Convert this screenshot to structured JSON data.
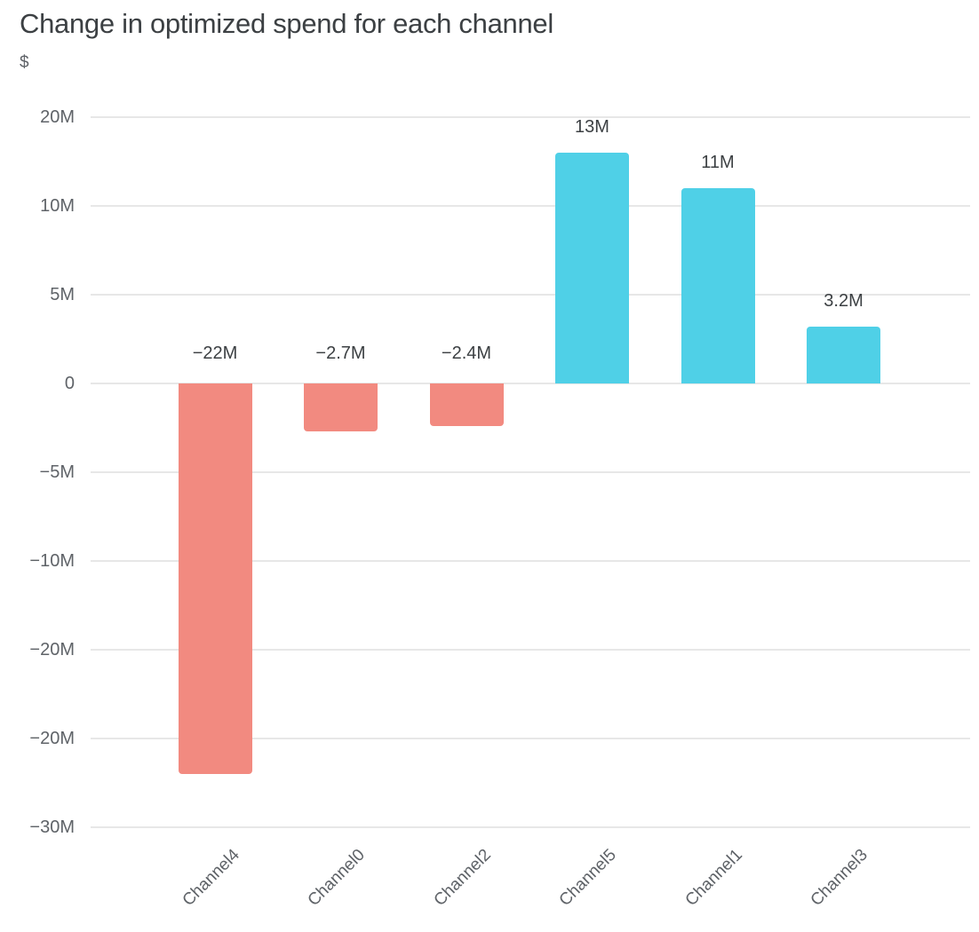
{
  "title": "Change in optimized spend for each channel",
  "y_axis_unit": "$",
  "colors": {
    "positive_bar": "#4FD0E7",
    "negative_bar": "#F28A80",
    "gridline": "#E7E7E7",
    "title_text": "#3C4043",
    "axis_text": "#5F6368",
    "value_label_text": "#3C4043"
  },
  "chart_data": {
    "type": "bar",
    "title": "Change in optimized spend for each channel",
    "xlabel": "",
    "ylabel": "$",
    "categories": [
      "Channel4",
      "Channel0",
      "Channel2",
      "Channel5",
      "Channel1",
      "Channel3"
    ],
    "values": [
      -22,
      -2.7,
      -2.4,
      13,
      11,
      3.2
    ],
    "value_unit": "M$",
    "bar_labels": [
      "−22M",
      "−2.7M",
      "−2.4M",
      "13M",
      "11M",
      "3.2M"
    ],
    "y_tick_labels": [
      "20M",
      "10M",
      "5M",
      "0",
      "−5M",
      "−10M",
      "−20M",
      "−20M",
      "−30M"
    ],
    "y_tick_values_m": [
      15,
      10,
      5,
      0,
      -5,
      -10,
      -15,
      -20,
      -25
    ],
    "ylim": [
      -32,
      16
    ],
    "grid": true,
    "legend": false,
    "negative_color": "#F28A80",
    "positive_color": "#4FD0E7"
  }
}
